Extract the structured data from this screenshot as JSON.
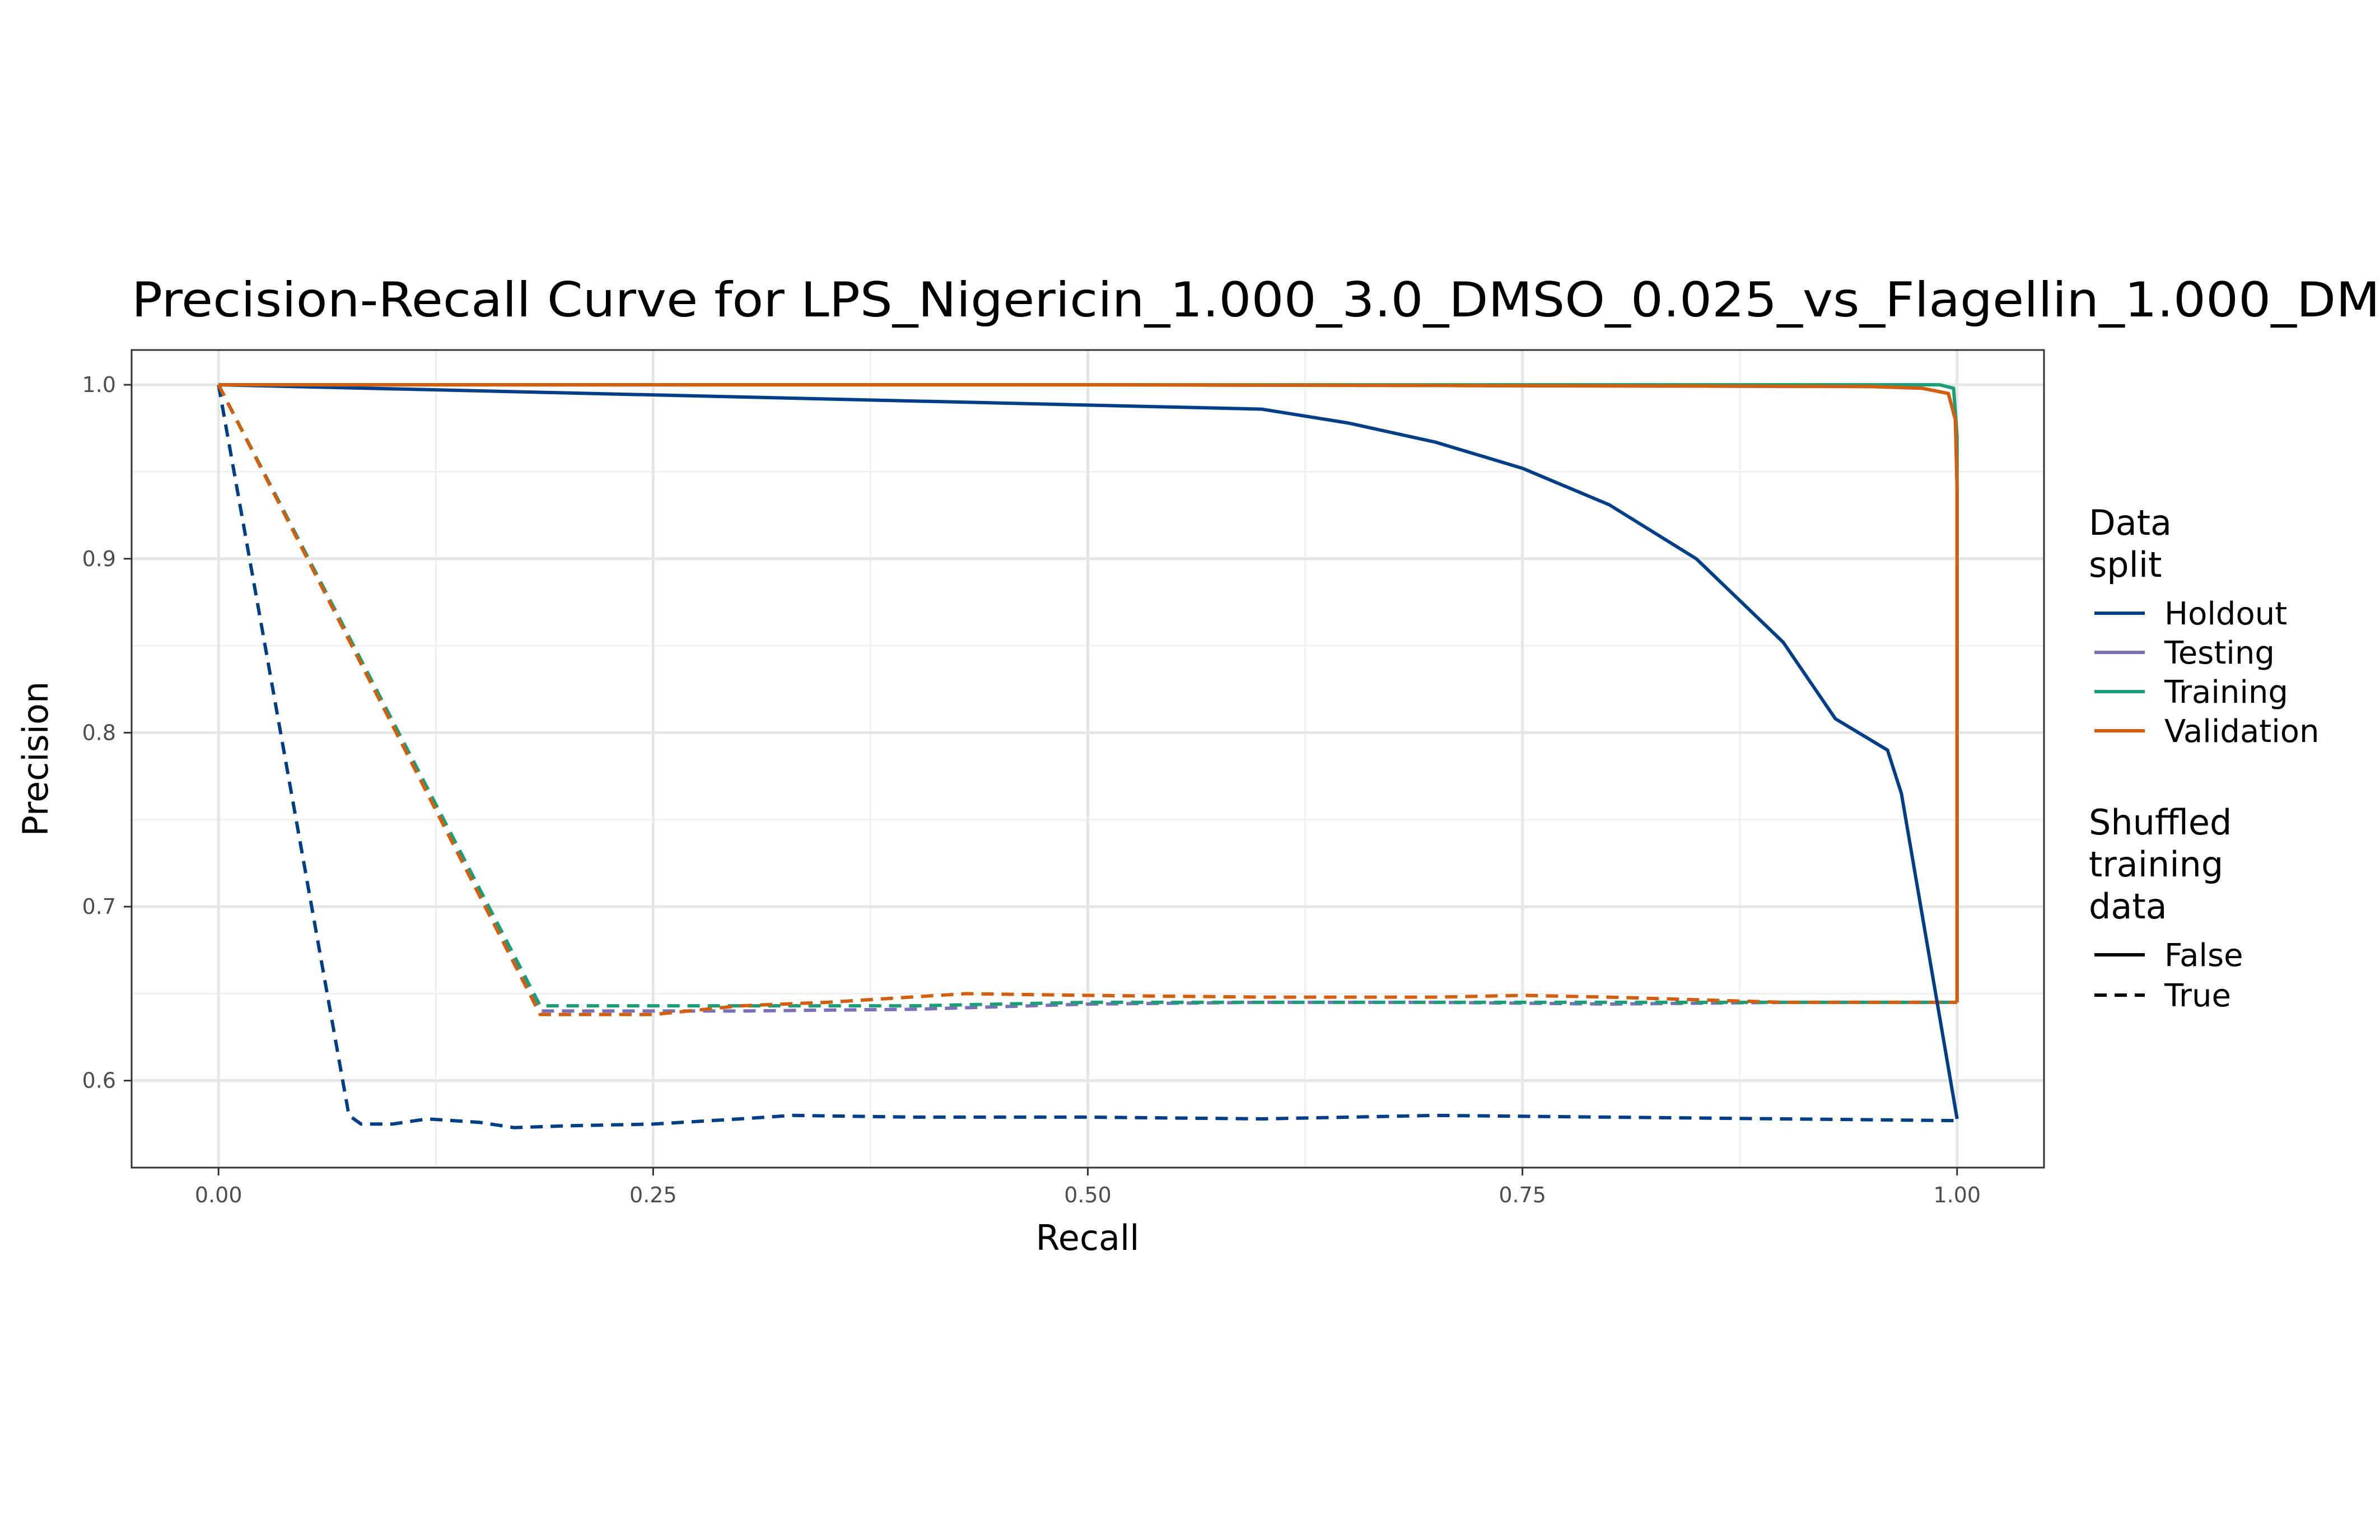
{
  "chart_data": {
    "type": "line",
    "title": "Precision-Recall Curve for LPS_Nigericin_1.000_3.0_DMSO_0.025_vs_Flagellin_1.000_DM",
    "xlabel": "Recall",
    "ylabel": "Precision",
    "xlim": [
      -0.05,
      1.05
    ],
    "ylim": [
      0.55,
      1.02
    ],
    "x_ticks": [
      0.0,
      0.25,
      0.5,
      0.75,
      1.0
    ],
    "x_tick_labels": [
      "0.00",
      "0.25",
      "0.50",
      "0.75",
      "1.00"
    ],
    "y_ticks": [
      0.6,
      0.7,
      0.8,
      0.9,
      1.0
    ],
    "y_tick_labels": [
      "0.6",
      "0.7",
      "0.8",
      "0.9",
      "1.0"
    ],
    "grid": true,
    "legend_position": "right",
    "legend": {
      "color_title": [
        "Data",
        "split"
      ],
      "color_entries": [
        {
          "label": "Holdout",
          "color": "#003f88"
        },
        {
          "label": "Testing",
          "color": "#7b6fb8"
        },
        {
          "label": "Training",
          "color": "#1b9e77"
        },
        {
          "label": "Validation",
          "color": "#d35f0e"
        }
      ],
      "linetype_title": [
        "Shuffled",
        "training",
        "data"
      ],
      "linetype_entries": [
        {
          "label": "False",
          "dash": "solid"
        },
        {
          "label": "True",
          "dash": "dashed"
        }
      ]
    },
    "series": [
      {
        "name": "Holdout",
        "shuffled": "False",
        "color": "#003f88",
        "dash": "solid",
        "x": [
          0,
          0.6,
          0.65,
          0.7,
          0.75,
          0.8,
          0.85,
          0.9,
          0.93,
          0.96,
          0.968,
          1.0
        ],
        "y": [
          1.0,
          0.986,
          0.978,
          0.967,
          0.952,
          0.931,
          0.9,
          0.852,
          0.808,
          0.79,
          0.765,
          0.578
        ]
      },
      {
        "name": "Testing",
        "shuffled": "False",
        "color": "#7b6fb8",
        "dash": "solid",
        "x": [
          0,
          0.5,
          0.95,
          0.98,
          0.995,
          0.999,
          1.0,
          1.0
        ],
        "y": [
          1.0,
          1.0,
          0.999,
          0.998,
          0.995,
          0.98,
          0.94,
          0.645
        ]
      },
      {
        "name": "Training",
        "shuffled": "False",
        "color": "#1b9e77",
        "dash": "solid",
        "x": [
          0,
          0.5,
          0.95,
          0.99,
          0.998,
          1.0,
          1.0
        ],
        "y": [
          1.0,
          1.0,
          1.0,
          1.0,
          0.998,
          0.97,
          0.645
        ]
      },
      {
        "name": "Validation",
        "shuffled": "False",
        "color": "#d35f0e",
        "dash": "solid",
        "x": [
          0,
          0.5,
          0.95,
          0.98,
          0.995,
          0.999,
          1.0,
          1.0
        ],
        "y": [
          1.0,
          1.0,
          0.999,
          0.998,
          0.995,
          0.98,
          0.94,
          0.645
        ]
      },
      {
        "name": "Holdout",
        "shuffled": "True",
        "color": "#003f88",
        "dash": "dashed",
        "x": [
          0,
          0.075,
          0.082,
          0.1,
          0.12,
          0.15,
          0.17,
          0.2,
          0.25,
          0.3,
          0.33,
          0.4,
          0.5,
          0.6,
          0.7,
          0.8,
          0.9,
          1.0
        ],
        "y": [
          1.0,
          0.58,
          0.575,
          0.575,
          0.578,
          0.576,
          0.573,
          0.574,
          0.575,
          0.578,
          0.58,
          0.579,
          0.579,
          0.578,
          0.58,
          0.579,
          0.578,
          0.577
        ]
      },
      {
        "name": "Testing",
        "shuffled": "True",
        "color": "#7b6fb8",
        "dash": "dashed",
        "x": [
          0,
          0.185,
          0.3,
          0.4,
          0.5,
          0.6,
          0.7,
          0.8,
          0.9,
          1.0
        ],
        "y": [
          1.0,
          0.64,
          0.64,
          0.641,
          0.644,
          0.645,
          0.645,
          0.644,
          0.645,
          0.645
        ]
      },
      {
        "name": "Training",
        "shuffled": "True",
        "color": "#1b9e77",
        "dash": "dashed",
        "x": [
          0,
          0.185,
          0.3,
          0.4,
          0.5,
          0.6,
          0.7,
          0.8,
          0.9,
          1.0
        ],
        "y": [
          1.0,
          0.643,
          0.643,
          0.643,
          0.645,
          0.645,
          0.645,
          0.645,
          0.645,
          0.645
        ]
      },
      {
        "name": "Validation",
        "shuffled": "True",
        "color": "#d35f0e",
        "dash": "dashed",
        "x": [
          0,
          0.185,
          0.25,
          0.3,
          0.35,
          0.43,
          0.5,
          0.6,
          0.7,
          0.75,
          0.8,
          0.9,
          1.0
        ],
        "y": [
          1.0,
          0.638,
          0.638,
          0.643,
          0.645,
          0.65,
          0.649,
          0.648,
          0.648,
          0.649,
          0.648,
          0.645,
          0.645
        ]
      }
    ]
  }
}
